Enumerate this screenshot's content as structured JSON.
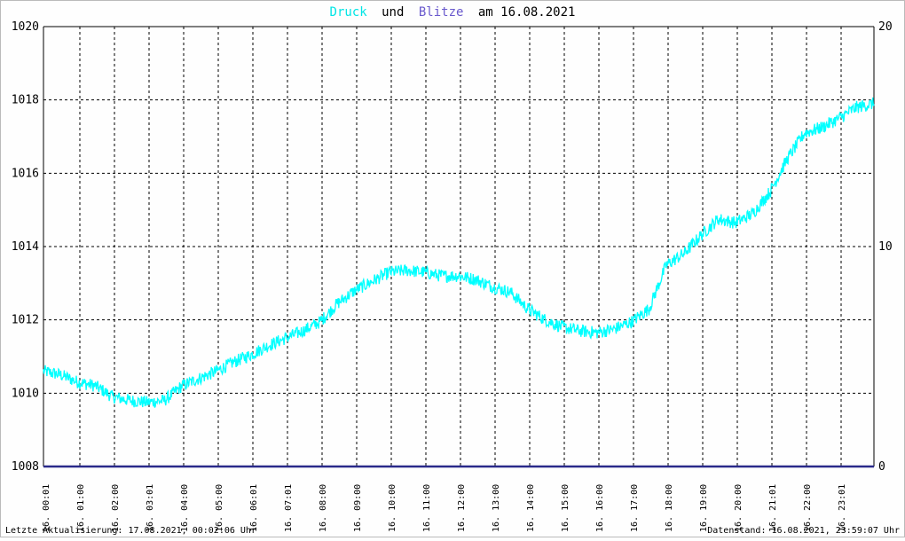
{
  "colors": {
    "background": "#fefefe",
    "pressure": "#00ffff",
    "lightning": "#6a5acd",
    "axis_baseline": "#2a2a8a",
    "text": "#000000"
  },
  "title": {
    "part1": "Druck",
    "part2": "und",
    "part3": "Blitze",
    "part4": "am 16.08.2021"
  },
  "footer": {
    "left": "Letzte Aktualisierung: 17.08.2021, 00:02:06 Uhr",
    "right": "Datenstand: 16.08.2021, 23:59:07 Uhr"
  },
  "chart_data": {
    "type": "line",
    "title": "Druck und Blitze am 16.08.2021",
    "x_tick_labels": [
      "16. 00:01",
      "16. 01:00",
      "16. 02:00",
      "16. 03:01",
      "16. 04:00",
      "16. 05:00",
      "16. 06:01",
      "16. 07:01",
      "16. 08:00",
      "16. 09:00",
      "16. 10:00",
      "16. 11:00",
      "16. 12:00",
      "16. 13:00",
      "16. 14:00",
      "16. 15:00",
      "16. 16:00",
      "16. 17:00",
      "16. 18:00",
      "16. 19:00",
      "16. 20:00",
      "16. 21:01",
      "16. 22:00",
      "16. 23:01"
    ],
    "ylim_left": [
      1008,
      1020
    ],
    "yticks_left": [
      "1008",
      "1010",
      "1012",
      "1014",
      "1016",
      "1018",
      "1020"
    ],
    "ylim_right": [
      0,
      20
    ],
    "yticks_right": [
      "0",
      "10",
      "20"
    ],
    "grid": true,
    "series": [
      {
        "name": "Druck",
        "axis": "left",
        "color": "#00ffff",
        "x_hours": [
          0,
          0.5,
          1,
          1.5,
          2,
          2.5,
          3,
          3.5,
          4,
          4.5,
          5,
          5.5,
          6,
          6.5,
          7,
          7.5,
          8,
          8.5,
          9,
          9.5,
          10,
          10.5,
          11,
          11.5,
          12,
          12.5,
          13,
          13.5,
          14,
          14.5,
          15,
          15.5,
          16,
          16.5,
          17,
          17.5,
          18,
          18.5,
          19,
          19.5,
          20,
          20.5,
          21,
          21.5,
          22,
          22.5,
          23,
          23.5,
          24
        ],
        "values": [
          1010.6,
          1010.5,
          1010.3,
          1010.2,
          1009.9,
          1009.8,
          1009.75,
          1009.8,
          1010.2,
          1010.4,
          1010.6,
          1010.85,
          1011.05,
          1011.3,
          1011.5,
          1011.7,
          1011.95,
          1012.45,
          1012.8,
          1013.05,
          1013.3,
          1013.35,
          1013.3,
          1013.2,
          1013.2,
          1013.1,
          1012.9,
          1012.75,
          1012.3,
          1012.0,
          1011.8,
          1011.7,
          1011.65,
          1011.75,
          1011.95,
          1012.3,
          1013.5,
          1013.8,
          1014.3,
          1014.75,
          1014.65,
          1014.9,
          1015.5,
          1016.4,
          1017.1,
          1017.25,
          1017.5,
          1017.8,
          1017.9
        ]
      },
      {
        "name": "Blitze",
        "axis": "right",
        "color": "#2a2a8a",
        "x_hours": [
          0,
          24
        ],
        "values": [
          0,
          0
        ]
      }
    ]
  }
}
